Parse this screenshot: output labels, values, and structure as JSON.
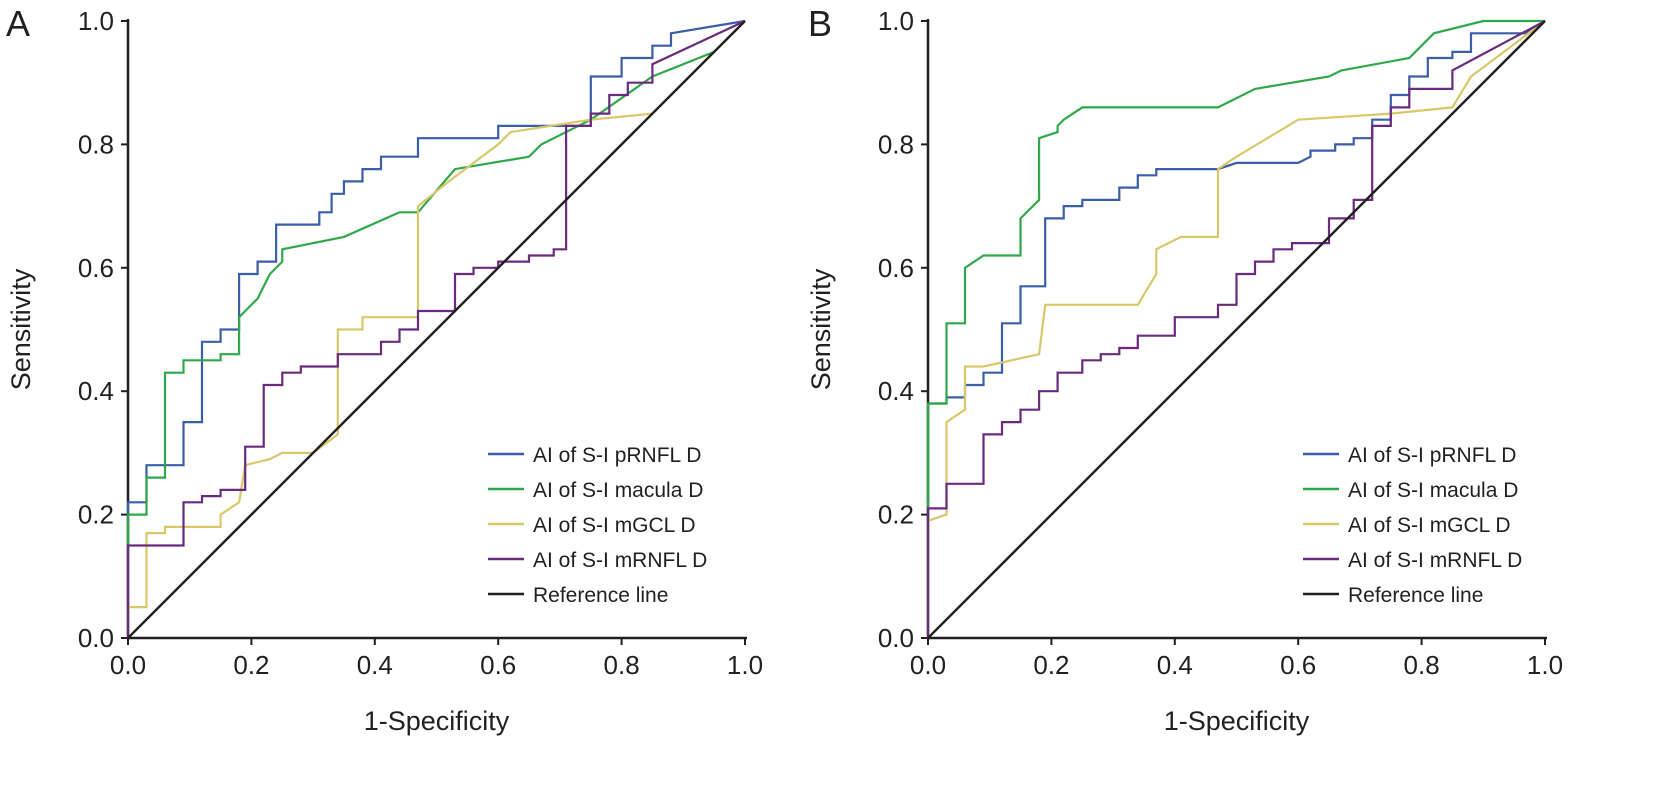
{
  "chart_data": [
    {
      "panel": "A",
      "type": "line",
      "xlabel": "1-Specificity",
      "ylabel": "Sensitivity",
      "xlim": [
        0,
        1
      ],
      "ylim": [
        0,
        1
      ],
      "xticks": [
        "0.0",
        "0.2",
        "0.4",
        "0.6",
        "0.8",
        "1.0"
      ],
      "yticks": [
        "0.0",
        "0.2",
        "0.4",
        "0.6",
        "0.8",
        "1.0"
      ],
      "grid": false,
      "legend_position": "bottom-right",
      "series": [
        {
          "name": "AI of S-I pRNFL D",
          "color": "#3a5ea8",
          "step": true,
          "x": [
            0,
            0,
            0.03,
            0.03,
            0.09,
            0.09,
            0.12,
            0.12,
            0.15,
            0.15,
            0.18,
            0.18,
            0.21,
            0.21,
            0.24,
            0.24,
            0.31,
            0.31,
            0.33,
            0.33,
            0.35,
            0.35,
            0.38,
            0.38,
            0.41,
            0.41,
            0.47,
            0.47,
            0.6,
            0.6,
            0.75,
            0.75,
            0.8,
            0.8,
            0.85,
            0.85,
            0.88,
            0.88,
            1
          ],
          "y": [
            0,
            0.22,
            0.22,
            0.28,
            0.28,
            0.35,
            0.35,
            0.48,
            0.48,
            0.5,
            0.5,
            0.59,
            0.59,
            0.61,
            0.61,
            0.67,
            0.67,
            0.69,
            0.69,
            0.72,
            0.72,
            0.74,
            0.74,
            0.76,
            0.76,
            0.78,
            0.78,
            0.81,
            0.81,
            0.83,
            0.83,
            0.91,
            0.91,
            0.94,
            0.94,
            0.96,
            0.96,
            0.98,
            1
          ]
        },
        {
          "name": "AI of S-I macula D",
          "color": "#2fa84a",
          "step": false,
          "x": [
            0,
            0,
            0.03,
            0.03,
            0.06,
            0.06,
            0.09,
            0.09,
            0.15,
            0.15,
            0.18,
            0.18,
            0.21,
            0.23,
            0.25,
            0.25,
            0.35,
            0.44,
            0.47,
            0.53,
            0.65,
            0.67,
            0.75,
            0.85,
            0.95,
            1
          ],
          "y": [
            0,
            0.2,
            0.2,
            0.26,
            0.26,
            0.43,
            0.43,
            0.45,
            0.45,
            0.46,
            0.46,
            0.52,
            0.55,
            0.59,
            0.61,
            0.63,
            0.65,
            0.69,
            0.69,
            0.76,
            0.78,
            0.8,
            0.84,
            0.91,
            0.95,
            1
          ]
        },
        {
          "name": "AI of S-I mGCL D",
          "color": "#d9c86a",
          "step": false,
          "x": [
            0,
            0,
            0.03,
            0.03,
            0.06,
            0.06,
            0.09,
            0.15,
            0.15,
            0.18,
            0.19,
            0.23,
            0.25,
            0.3,
            0.34,
            0.34,
            0.38,
            0.38,
            0.47,
            0.47,
            0.52,
            0.6,
            0.62,
            0.75,
            0.85,
            0.9,
            1
          ],
          "y": [
            0,
            0.05,
            0.05,
            0.17,
            0.17,
            0.18,
            0.18,
            0.18,
            0.2,
            0.22,
            0.28,
            0.29,
            0.3,
            0.3,
            0.33,
            0.5,
            0.5,
            0.52,
            0.52,
            0.7,
            0.74,
            0.8,
            0.82,
            0.84,
            0.85,
            0.9,
            1
          ]
        },
        {
          "name": "AI of S-I mRNFL D",
          "color": "#6a2a7e",
          "step": true,
          "x": [
            0,
            0,
            0.09,
            0.09,
            0.12,
            0.12,
            0.15,
            0.15,
            0.19,
            0.19,
            0.22,
            0.22,
            0.25,
            0.25,
            0.28,
            0.28,
            0.34,
            0.34,
            0.41,
            0.41,
            0.44,
            0.44,
            0.47,
            0.47,
            0.53,
            0.53,
            0.56,
            0.56,
            0.6,
            0.6,
            0.65,
            0.65,
            0.69,
            0.69,
            0.71,
            0.71,
            0.75,
            0.75,
            0.78,
            0.78,
            0.81,
            0.81,
            0.85,
            0.85,
            1
          ],
          "y": [
            0,
            0.15,
            0.15,
            0.22,
            0.22,
            0.23,
            0.23,
            0.24,
            0.24,
            0.31,
            0.31,
            0.41,
            0.41,
            0.43,
            0.43,
            0.44,
            0.44,
            0.46,
            0.46,
            0.48,
            0.48,
            0.5,
            0.5,
            0.53,
            0.53,
            0.59,
            0.59,
            0.6,
            0.6,
            0.61,
            0.61,
            0.62,
            0.62,
            0.63,
            0.63,
            0.83,
            0.83,
            0.85,
            0.85,
            0.88,
            0.88,
            0.9,
            0.9,
            0.93,
            1
          ]
        },
        {
          "name": "Reference line",
          "color": "#231f20",
          "step": false,
          "x": [
            0,
            1
          ],
          "y": [
            0,
            1
          ]
        }
      ]
    },
    {
      "panel": "B",
      "type": "line",
      "xlabel": "1-Specificity",
      "ylabel": "Sensitivity",
      "xlim": [
        0,
        1
      ],
      "ylim": [
        0,
        1
      ],
      "xticks": [
        "0.0",
        "0.2",
        "0.4",
        "0.6",
        "0.8",
        "1.0"
      ],
      "yticks": [
        "0.0",
        "0.2",
        "0.4",
        "0.6",
        "0.8",
        "1.0"
      ],
      "grid": false,
      "legend_position": "bottom-right",
      "series": [
        {
          "name": "AI of S-I pRNFL D",
          "color": "#3a5ea8",
          "step": true,
          "x": [
            0,
            0,
            0.03,
            0.03,
            0.06,
            0.06,
            0.09,
            0.09,
            0.12,
            0.12,
            0.15,
            0.15,
            0.19,
            0.19,
            0.22,
            0.22,
            0.25,
            0.25,
            0.31,
            0.31,
            0.34,
            0.34,
            0.37,
            0.37,
            0.47,
            0.5,
            0.6,
            0.62,
            0.62,
            0.66,
            0.66,
            0.69,
            0.69,
            0.72,
            0.72,
            0.75,
            0.75,
            0.78,
            0.78,
            0.81,
            0.81,
            0.85,
            0.85,
            0.88,
            0.88,
            0.97,
            1
          ],
          "y": [
            0,
            0.38,
            0.38,
            0.39,
            0.39,
            0.41,
            0.41,
            0.43,
            0.43,
            0.51,
            0.51,
            0.57,
            0.57,
            0.68,
            0.68,
            0.7,
            0.7,
            0.71,
            0.71,
            0.73,
            0.73,
            0.75,
            0.75,
            0.76,
            0.76,
            0.77,
            0.77,
            0.78,
            0.79,
            0.79,
            0.8,
            0.8,
            0.81,
            0.81,
            0.84,
            0.84,
            0.88,
            0.88,
            0.91,
            0.91,
            0.94,
            0.94,
            0.95,
            0.95,
            0.98,
            0.98,
            1
          ]
        },
        {
          "name": "AI of S-I macula D",
          "color": "#2fa84a",
          "step": false,
          "x": [
            0,
            0,
            0.03,
            0.03,
            0.06,
            0.06,
            0.09,
            0.15,
            0.15,
            0.18,
            0.18,
            0.21,
            0.21,
            0.22,
            0.25,
            0.47,
            0.53,
            0.65,
            0.67,
            0.78,
            0.82,
            0.9,
            1
          ],
          "y": [
            0,
            0.38,
            0.38,
            0.51,
            0.51,
            0.6,
            0.62,
            0.62,
            0.68,
            0.71,
            0.81,
            0.82,
            0.83,
            0.84,
            0.86,
            0.86,
            0.89,
            0.91,
            0.92,
            0.94,
            0.98,
            1,
            1
          ]
        },
        {
          "name": "AI of S-I mGCL D",
          "color": "#d9c86a",
          "step": false,
          "x": [
            0,
            0,
            0.03,
            0.03,
            0.06,
            0.06,
            0.09,
            0.18,
            0.19,
            0.34,
            0.37,
            0.37,
            0.41,
            0.47,
            0.47,
            0.5,
            0.6,
            0.75,
            0.85,
            0.88,
            1
          ],
          "y": [
            0,
            0.19,
            0.2,
            0.35,
            0.37,
            0.44,
            0.44,
            0.46,
            0.54,
            0.54,
            0.59,
            0.63,
            0.65,
            0.65,
            0.76,
            0.78,
            0.84,
            0.85,
            0.86,
            0.91,
            1
          ]
        },
        {
          "name": "AI of S-I mRNFL D",
          "color": "#6a2a7e",
          "step": true,
          "x": [
            0,
            0,
            0.03,
            0.03,
            0.09,
            0.09,
            0.12,
            0.12,
            0.15,
            0.15,
            0.18,
            0.18,
            0.21,
            0.21,
            0.25,
            0.25,
            0.28,
            0.28,
            0.31,
            0.31,
            0.34,
            0.34,
            0.4,
            0.4,
            0.47,
            0.47,
            0.5,
            0.5,
            0.53,
            0.53,
            0.56,
            0.56,
            0.59,
            0.59,
            0.65,
            0.65,
            0.69,
            0.69,
            0.72,
            0.72,
            0.75,
            0.75,
            0.78,
            0.78,
            0.85,
            0.85,
            1
          ],
          "y": [
            0,
            0.21,
            0.21,
            0.25,
            0.25,
            0.33,
            0.33,
            0.35,
            0.35,
            0.37,
            0.37,
            0.4,
            0.4,
            0.43,
            0.43,
            0.45,
            0.45,
            0.46,
            0.46,
            0.47,
            0.47,
            0.49,
            0.49,
            0.52,
            0.52,
            0.54,
            0.54,
            0.59,
            0.59,
            0.61,
            0.61,
            0.63,
            0.63,
            0.64,
            0.64,
            0.68,
            0.68,
            0.71,
            0.71,
            0.83,
            0.83,
            0.86,
            0.86,
            0.89,
            0.89,
            0.92,
            1
          ]
        },
        {
          "name": "Reference line",
          "color": "#231f20",
          "step": false,
          "x": [
            0,
            1
          ],
          "y": [
            0,
            1
          ]
        }
      ]
    }
  ]
}
